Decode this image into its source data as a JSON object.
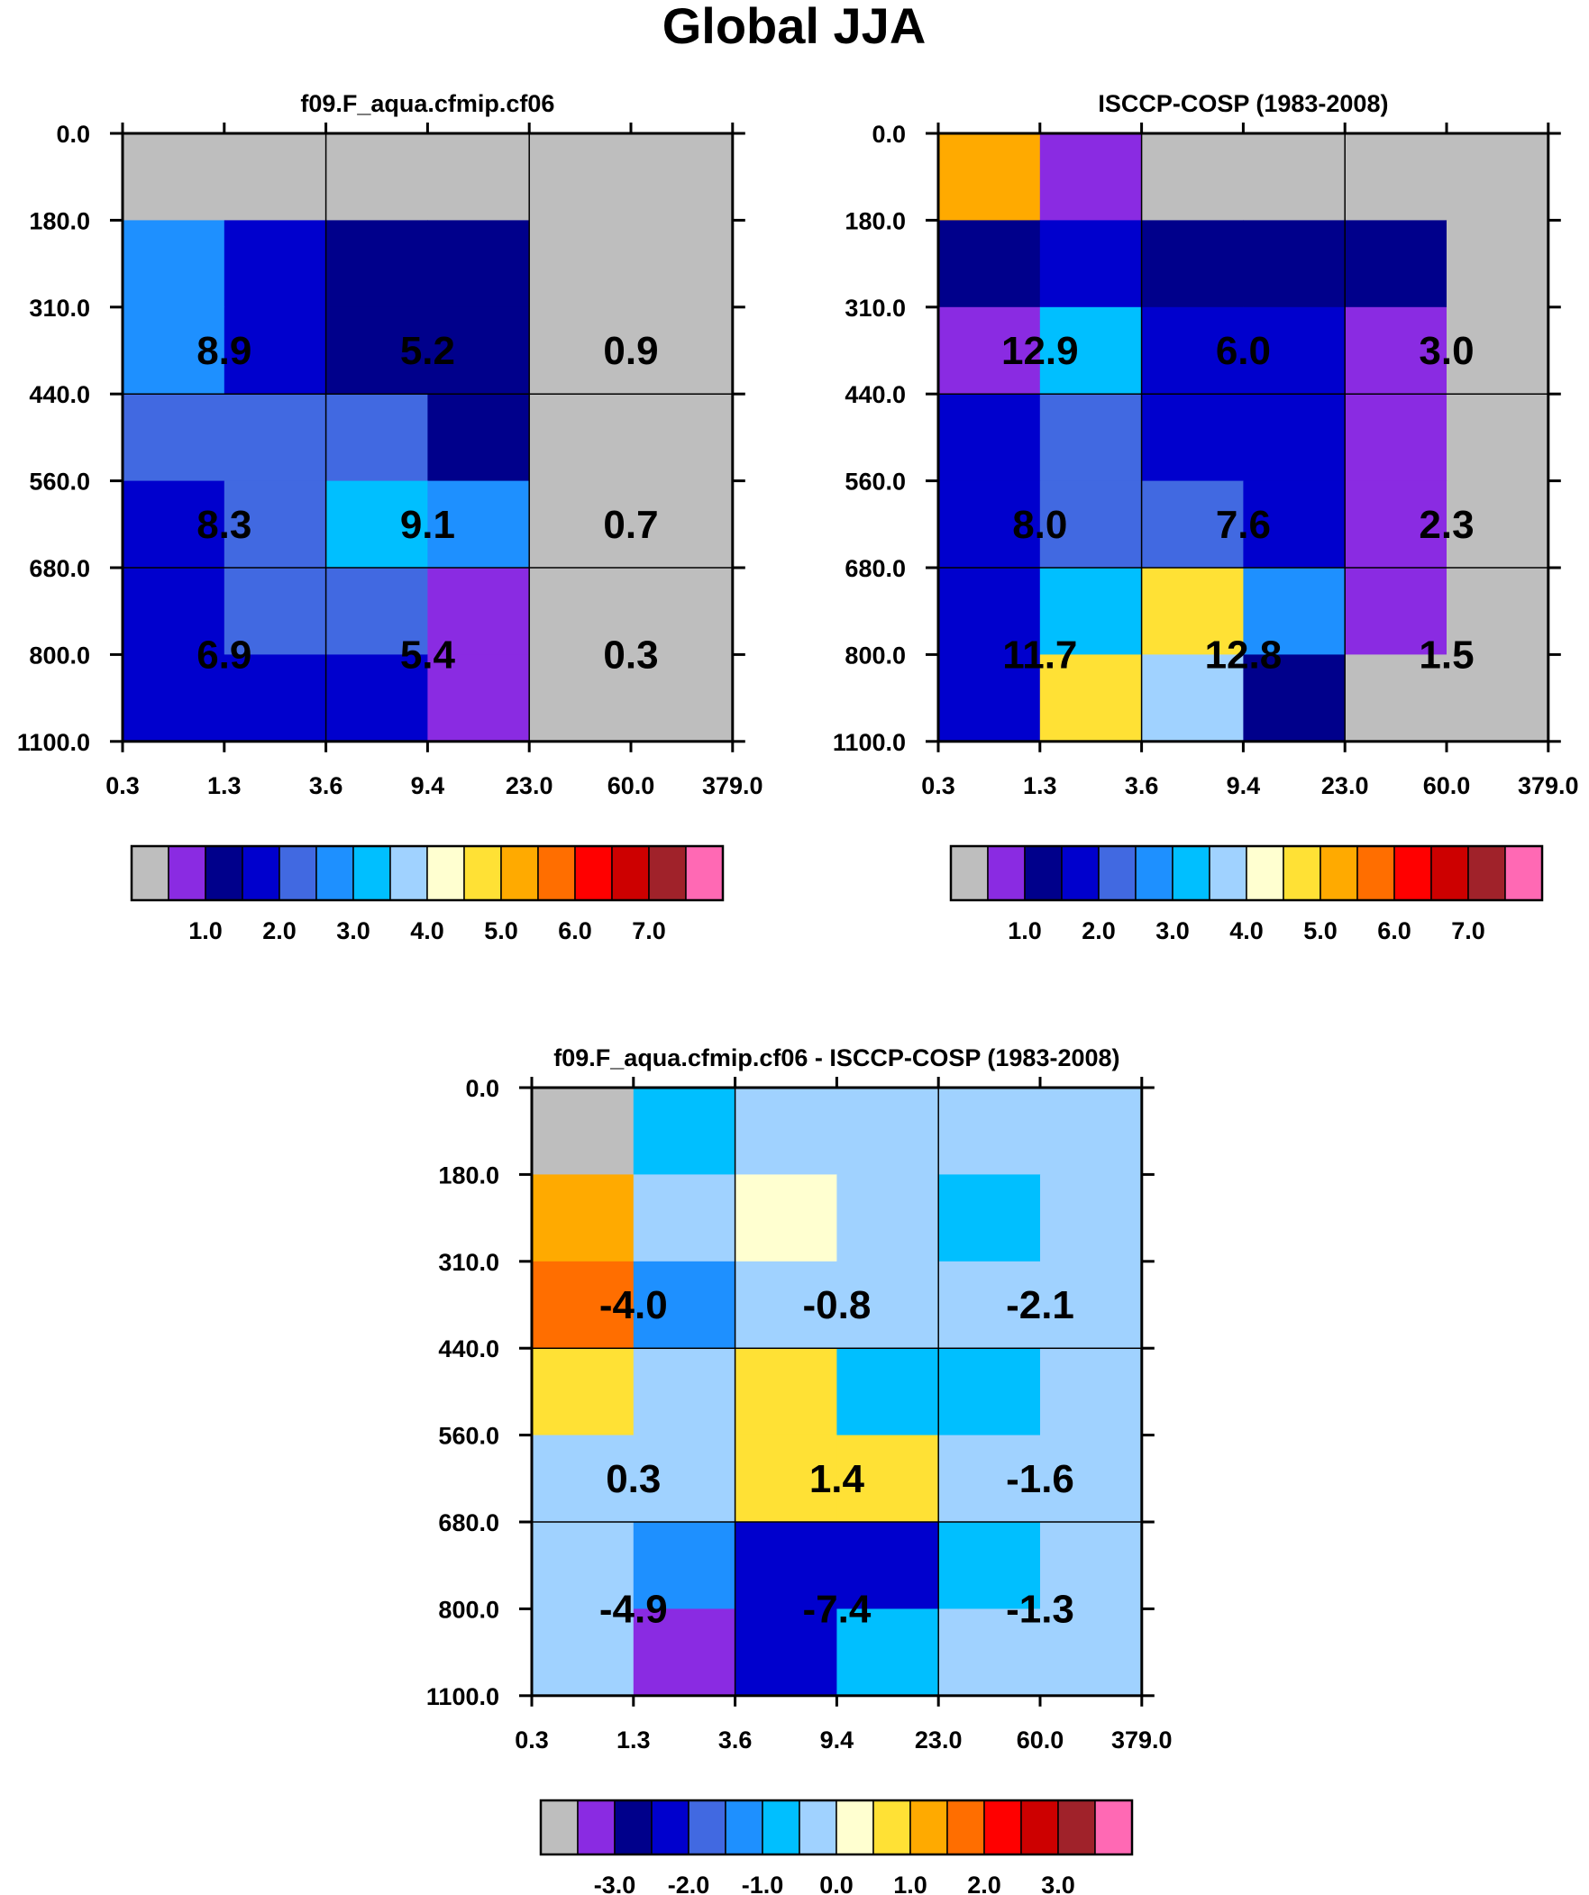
{
  "figure_title": "Global JJA",
  "chart_data": [
    {
      "id": "model",
      "type": "heatmap",
      "title": "f09.F_aqua.cfmip.cf06",
      "x_ticks": [
        "0.3",
        "1.3",
        "3.6",
        "9.4",
        "23.0",
        "60.0",
        "379.0"
      ],
      "y_ticks": [
        "0.0",
        "180.0",
        "310.0",
        "440.0",
        "560.0",
        "680.0",
        "800.0",
        "1100.0"
      ],
      "cell_colors": [
        [
          0,
          0,
          0,
          0,
          0,
          0
        ],
        [
          5,
          3,
          2,
          2,
          0,
          0
        ],
        [
          5,
          3,
          2,
          2,
          0,
          0
        ],
        [
          4,
          4,
          4,
          2,
          0,
          0
        ],
        [
          3,
          4,
          6,
          5,
          0,
          0
        ],
        [
          3,
          4,
          4,
          1,
          0,
          0
        ],
        [
          3,
          3,
          3,
          1,
          0,
          0
        ]
      ],
      "group_values": [
        [
          "8.9",
          "5.2",
          "0.9"
        ],
        [
          "8.3",
          "9.1",
          "0.7"
        ],
        [
          "6.9",
          "5.4",
          "0.3"
        ]
      ],
      "colorbar_labels": [
        "1.0",
        "2.0",
        "3.0",
        "4.0",
        "5.0",
        "6.0",
        "7.0"
      ]
    },
    {
      "id": "obs",
      "type": "heatmap",
      "title": "ISCCP-COSP (1983-2008)",
      "x_ticks": [
        "0.3",
        "1.3",
        "3.6",
        "9.4",
        "23.0",
        "60.0",
        "379.0"
      ],
      "y_ticks": [
        "0.0",
        "180.0",
        "310.0",
        "440.0",
        "560.0",
        "680.0",
        "800.0",
        "1100.0"
      ],
      "cell_colors": [
        [
          10,
          1,
          0,
          0,
          0,
          0
        ],
        [
          2,
          3,
          2,
          2,
          2,
          0
        ],
        [
          1,
          6,
          3,
          3,
          1,
          0
        ],
        [
          3,
          4,
          3,
          3,
          1,
          0
        ],
        [
          3,
          4,
          4,
          3,
          1,
          0
        ],
        [
          3,
          6,
          9,
          5,
          1,
          0
        ],
        [
          3,
          9,
          7,
          2,
          0,
          0
        ]
      ],
      "group_values": [
        [
          "12.9",
          "6.0",
          "3.0"
        ],
        [
          "8.0",
          "7.6",
          "2.3"
        ],
        [
          "11.7",
          "12.8",
          "1.5"
        ]
      ],
      "colorbar_labels": [
        "1.0",
        "2.0",
        "3.0",
        "4.0",
        "5.0",
        "6.0",
        "7.0"
      ]
    },
    {
      "id": "diff",
      "type": "heatmap",
      "title": "f09.F_aqua.cfmip.cf06 - ISCCP-COSP (1983-2008)",
      "x_ticks": [
        "0.3",
        "1.3",
        "3.6",
        "9.4",
        "23.0",
        "60.0",
        "379.0"
      ],
      "y_ticks": [
        "0.0",
        "180.0",
        "310.0",
        "440.0",
        "560.0",
        "680.0",
        "800.0",
        "1100.0"
      ],
      "cell_colors": [
        [
          0,
          6,
          7,
          7,
          7,
          7
        ],
        [
          10,
          7,
          8,
          7,
          6,
          7
        ],
        [
          11,
          5,
          7,
          7,
          7,
          7
        ],
        [
          9,
          7,
          9,
          6,
          6,
          7
        ],
        [
          7,
          7,
          9,
          9,
          7,
          7
        ],
        [
          7,
          5,
          3,
          3,
          6,
          7
        ],
        [
          7,
          1,
          3,
          6,
          7,
          7
        ]
      ],
      "group_values": [
        [
          "-4.0",
          "-0.8",
          "-2.1"
        ],
        [
          "0.3",
          "1.4",
          "-1.6"
        ],
        [
          "-4.9",
          "-7.4",
          "-1.3"
        ]
      ],
      "colorbar_labels": [
        "-3.0",
        "-2.0",
        "-1.0",
        "0.0",
        "1.0",
        "2.0",
        "3.0"
      ]
    }
  ],
  "palette": [
    "#bebebe",
    "#8a2be2",
    "#00008b",
    "#0000cd",
    "#4169e1",
    "#1e90ff",
    "#00bfff",
    "#a0d2ff",
    "#ffffd0",
    "#ffe135",
    "#ffaa00",
    "#ff6e00",
    "#ff0000",
    "#cd0000",
    "#a0222a",
    "#ff69b4"
  ]
}
